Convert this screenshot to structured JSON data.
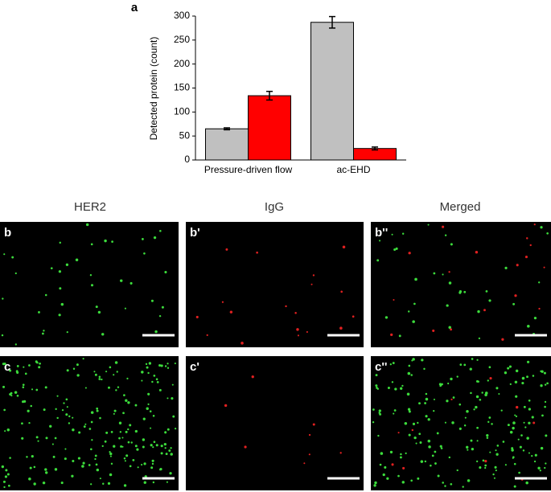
{
  "chart_data": {
    "type": "bar",
    "label": "a",
    "ylabel": "Detected protein (count)",
    "categories": [
      "Pressure-driven flow",
      "ac-EHD"
    ],
    "series": [
      {
        "color": "#c0c0c0",
        "values": [
          65,
          287
        ],
        "errors": [
          2,
          12
        ]
      },
      {
        "color": "#ff0000",
        "values": [
          134,
          24
        ],
        "errors": [
          9,
          3
        ]
      }
    ],
    "ylim": [
      0,
      300
    ],
    "yticks": [
      0,
      50,
      100,
      150,
      200,
      250,
      300
    ]
  },
  "panels": {
    "headers": [
      "HER2",
      "IgG",
      "Merged"
    ],
    "labels": [
      [
        "b",
        "b'",
        "b''"
      ],
      [
        "c",
        "c'",
        "c''"
      ]
    ]
  }
}
